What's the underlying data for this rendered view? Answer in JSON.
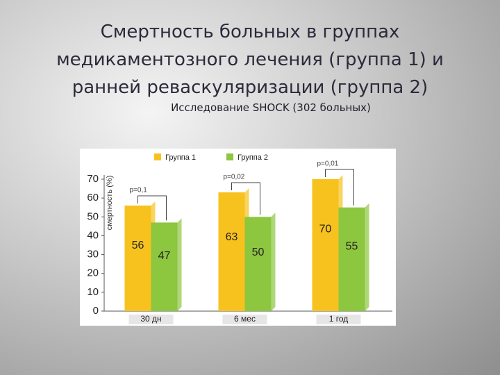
{
  "title": "Смертность больных в группах медикаментозного лечения (группа 1) и ранней реваскуляризации (группа 2)",
  "subtitle": "Исследование SHOCK (302 больных)",
  "chart_data": {
    "type": "bar",
    "categories": [
      "30 дн",
      "6 мес",
      "1 год"
    ],
    "series": [
      {
        "name": "Группа 1",
        "color": "#f7c21e",
        "values": [
          56,
          63,
          70
        ]
      },
      {
        "name": "Группа 2",
        "color": "#8dc63f",
        "values": [
          47,
          50,
          55
        ]
      }
    ],
    "y_label": "смертность (%)",
    "ylim": [
      0,
      70
    ],
    "yticks": [
      0,
      10,
      20,
      30,
      40,
      50,
      60,
      70
    ],
    "annotations": [
      "p=0,1",
      "p=0,02",
      "p=0,01"
    ]
  }
}
